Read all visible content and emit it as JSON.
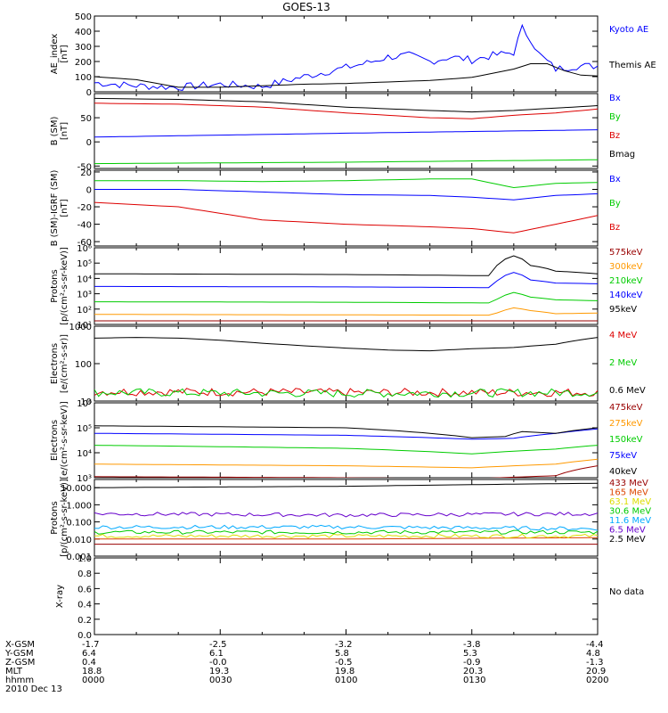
{
  "title": "GOES-13",
  "date_label": "2010 Dec 13",
  "footer": {
    "rows": [
      {
        "label": "X-GSM",
        "values": [
          "-1.7",
          "-2.5",
          "-3.2",
          "-3.8",
          "-4.4"
        ]
      },
      {
        "label": "Y-GSM",
        "values": [
          "6.4",
          "6.1",
          "5.8",
          "5.3",
          "4.8"
        ]
      },
      {
        "label": "Z-GSM",
        "values": [
          "0.4",
          "-0.0",
          "-0.5",
          "-0.9",
          "-1.3"
        ]
      },
      {
        "label": "MLT",
        "values": [
          "18.8",
          "19.3",
          "19.8",
          "20.3",
          "20.9"
        ]
      },
      {
        "label": "hhmm",
        "values": [
          "0000",
          "0030",
          "0100",
          "0130",
          "0200"
        ]
      }
    ]
  },
  "chart_data": [
    {
      "type": "line",
      "ylabel": "AE_index\n[nT]",
      "yscale": "linear",
      "ylim": [
        0,
        500
      ],
      "yticks": [
        {
          "v": 0,
          "label": "0"
        },
        {
          "v": 100,
          "label": "100"
        },
        {
          "v": 200,
          "label": "200"
        },
        {
          "v": 300,
          "label": "300"
        },
        {
          "v": 400,
          "label": "400"
        },
        {
          "v": 500,
          "label": "500"
        }
      ],
      "series": [
        {
          "name": "Kyoto AE",
          "color": "#0000ff",
          "kind": "noisy",
          "x": [
            0,
            10,
            20,
            30,
            40,
            50,
            60,
            65,
            70,
            75,
            80,
            85,
            90,
            95,
            100,
            102,
            104,
            106,
            108,
            110,
            115,
            120
          ],
          "y": [
            60,
            40,
            30,
            50,
            35,
            100,
            160,
            190,
            230,
            240,
            200,
            230,
            210,
            240,
            260,
            420,
            350,
            250,
            200,
            150,
            170,
            170
          ]
        },
        {
          "name": "Themis AE",
          "color": "#000000",
          "kind": "smooth",
          "x": [
            0,
            10,
            20,
            30,
            40,
            50,
            60,
            70,
            80,
            90,
            100,
            104,
            108,
            112,
            116,
            120
          ],
          "y": [
            100,
            80,
            30,
            30,
            40,
            50,
            55,
            65,
            75,
            95,
            150,
            185,
            185,
            140,
            110,
            105
          ]
        }
      ]
    },
    {
      "type": "line",
      "ylabel": "B (SM)\n[nT]",
      "yscale": "linear",
      "ylim": [
        -55,
        100
      ],
      "yticks": [
        {
          "v": -50,
          "label": "-50"
        },
        {
          "v": 0,
          "label": "0"
        },
        {
          "v": 50,
          "label": "50"
        },
        {
          "v": 100,
          "label": ""
        }
      ],
      "series": [
        {
          "name": "Bx",
          "color": "#0000ff",
          "kind": "smooth",
          "x": [
            0,
            60,
            120
          ],
          "y": [
            10,
            18,
            25
          ]
        },
        {
          "name": "By",
          "color": "#00cc00",
          "kind": "smooth",
          "x": [
            0,
            60,
            120
          ],
          "y": [
            -45,
            -42,
            -37
          ]
        },
        {
          "name": "Bz",
          "color": "#dd0000",
          "kind": "smooth",
          "x": [
            0,
            20,
            40,
            60,
            80,
            90,
            100,
            110,
            120
          ],
          "y": [
            80,
            78,
            72,
            60,
            50,
            48,
            55,
            60,
            68
          ]
        },
        {
          "name": "Bmag",
          "color": "#000000",
          "kind": "smooth",
          "x": [
            0,
            20,
            40,
            60,
            80,
            90,
            100,
            110,
            120
          ],
          "y": [
            90,
            88,
            83,
            72,
            65,
            62,
            65,
            70,
            75
          ]
        }
      ]
    },
    {
      "type": "line",
      "ylabel": "B (SM)-IGRF (SM)\n[nT]",
      "yscale": "linear",
      "ylim": [
        -65,
        22
      ],
      "yticks": [
        {
          "v": -60,
          "label": "-60"
        },
        {
          "v": -40,
          "label": "-40"
        },
        {
          "v": -20,
          "label": "-20"
        },
        {
          "v": 0,
          "label": "0"
        },
        {
          "v": 20,
          "label": "20"
        }
      ],
      "series": [
        {
          "name": "Bx",
          "color": "#0000ff",
          "kind": "smooth",
          "x": [
            0,
            20,
            40,
            60,
            80,
            90,
            100,
            110,
            120
          ],
          "y": [
            0,
            0,
            -3,
            -6,
            -7,
            -9,
            -12,
            -7,
            -5
          ]
        },
        {
          "name": "By",
          "color": "#00cc00",
          "kind": "smooth",
          "x": [
            0,
            20,
            40,
            60,
            80,
            90,
            100,
            110,
            120
          ],
          "y": [
            10,
            10,
            9,
            10,
            12,
            12,
            2,
            7,
            8
          ]
        },
        {
          "name": "Bz",
          "color": "#dd0000",
          "kind": "smooth",
          "x": [
            0,
            20,
            40,
            60,
            80,
            90,
            100,
            110,
            120
          ],
          "y": [
            -15,
            -20,
            -35,
            -40,
            -43,
            -45,
            -50,
            -40,
            -30
          ]
        }
      ]
    },
    {
      "type": "line",
      "ylabel": "Protons\n[p/(cm²-s-sr-keV)]",
      "yscale": "log",
      "ylim": [
        10,
        1000000
      ],
      "yticks": [
        {
          "v": 10,
          "label": "10¹"
        },
        {
          "v": 100,
          "label": "10²"
        },
        {
          "v": 1000,
          "label": "10³"
        },
        {
          "v": 10000,
          "label": "10⁴"
        },
        {
          "v": 100000,
          "label": "10⁵"
        },
        {
          "v": 1000000,
          "label": "10⁶"
        }
      ],
      "series": [
        {
          "name": "575keV",
          "color": "#990000",
          "kind": "smooth",
          "x": [
            0,
            60,
            120
          ],
          "y": [
            17,
            17,
            17
          ]
        },
        {
          "name": "300keV",
          "color": "#ff9900",
          "kind": "smooth",
          "x": [
            0,
            60,
            95,
            100,
            104,
            110,
            120
          ],
          "y": [
            45,
            42,
            40,
            120,
            80,
            50,
            55
          ]
        },
        {
          "name": "210keV",
          "color": "#00cc00",
          "kind": "smooth",
          "x": [
            0,
            60,
            95,
            100,
            104,
            110,
            120
          ],
          "y": [
            300,
            280,
            250,
            1200,
            600,
            400,
            350
          ]
        },
        {
          "name": "140keV",
          "color": "#0000ff",
          "kind": "smooth",
          "x": [
            0,
            60,
            95,
            100,
            104,
            110,
            120
          ],
          "y": [
            3000,
            2800,
            2500,
            25000,
            8000,
            5000,
            4500
          ]
        },
        {
          "name": "95keV",
          "color": "#000000",
          "kind": "smooth",
          "x": [
            0,
            60,
            95,
            100,
            104,
            110,
            120
          ],
          "y": [
            20000,
            18000,
            15000,
            300000,
            70000,
            30000,
            20000
          ]
        }
      ]
    },
    {
      "type": "line",
      "ylabel": "Electrons\n[e/(cm²-s-sr)]",
      "yscale": "log",
      "ylim": [
        10,
        1000
      ],
      "yticks": [
        {
          "v": 10,
          "label": "10"
        },
        {
          "v": 100,
          "label": "100"
        },
        {
          "v": 1000,
          "label": "1000"
        }
      ],
      "series": [
        {
          "name": "4 MeV",
          "color": "#dd0000",
          "kind": "noisy",
          "x": [
            0,
            60,
            120
          ],
          "y": [
            18,
            17,
            17
          ]
        },
        {
          "name": "2 MeV",
          "color": "#00cc00",
          "kind": "noisy",
          "x": [
            0,
            60,
            120
          ],
          "y": [
            17,
            16,
            17
          ]
        },
        {
          "name": "0.6 MeV",
          "color": "#000000",
          "kind": "smooth",
          "x": [
            0,
            10,
            20,
            30,
            40,
            50,
            60,
            70,
            80,
            90,
            100,
            110,
            120
          ],
          "y": [
            480,
            500,
            480,
            420,
            350,
            300,
            260,
            230,
            220,
            250,
            270,
            330,
            500
          ]
        }
      ]
    },
    {
      "type": "line",
      "ylabel": "Electrons\n[e/(cm²-s-sr-keV)]",
      "yscale": "log",
      "ylim": [
        1000,
        1000000
      ],
      "yticks": [
        {
          "v": 1000,
          "label": "10³"
        },
        {
          "v": 10000,
          "label": "10⁴"
        },
        {
          "v": 100000,
          "label": "10⁵"
        },
        {
          "v": 1000000,
          "label": "10⁶"
        }
      ],
      "series": [
        {
          "name": "475keV",
          "color": "#990000",
          "kind": "smooth",
          "x": [
            0,
            60,
            90,
            110,
            120
          ],
          "y": [
            1100,
            1000,
            900,
            1200,
            3000
          ]
        },
        {
          "name": "275keV",
          "color": "#ff9900",
          "kind": "smooth",
          "x": [
            0,
            60,
            90,
            110,
            120
          ],
          "y": [
            3500,
            3000,
            2500,
            3500,
            5500
          ]
        },
        {
          "name": "150keV",
          "color": "#00cc00",
          "kind": "smooth",
          "x": [
            0,
            60,
            90,
            110,
            120
          ],
          "y": [
            20000,
            15000,
            9000,
            14000,
            20000
          ]
        },
        {
          "name": "75keV",
          "color": "#0000ff",
          "kind": "smooth",
          "x": [
            0,
            60,
            90,
            100,
            110,
            120
          ],
          "y": [
            60000,
            50000,
            35000,
            38000,
            60000,
            90000
          ]
        },
        {
          "name": "40keV",
          "color": "#000000",
          "kind": "smooth",
          "x": [
            0,
            60,
            90,
            98,
            102,
            110,
            120
          ],
          "y": [
            120000,
            100000,
            40000,
            45000,
            70000,
            60000,
            100000
          ]
        }
      ]
    },
    {
      "type": "line",
      "ylabel": "Protons\n[p/(cm²-s-sr-keV)]",
      "yscale": "log",
      "ylim": [
        0.001,
        30
      ],
      "yticks": [
        {
          "v": 0.001,
          "label": "0.001"
        },
        {
          "v": 0.01,
          "label": "0.010"
        },
        {
          "v": 0.1,
          "label": "0.100"
        },
        {
          "v": 1,
          "label": "1.000"
        },
        {
          "v": 10,
          "label": "10.000"
        }
      ],
      "series": [
        {
          "name": "433 MeV",
          "color": "#990000",
          "kind": "smooth",
          "x": [
            0,
            60,
            120
          ],
          "y": [
            0.005,
            0.005,
            0.005
          ]
        },
        {
          "name": "165 MeV",
          "color": "#dd4400",
          "kind": "smooth",
          "x": [
            0,
            60,
            120
          ],
          "y": [
            0.01,
            0.01,
            0.012
          ]
        },
        {
          "name": "63.1 MeV",
          "color": "#dddd00",
          "kind": "noisy",
          "x": [
            0,
            60,
            120
          ],
          "y": [
            0.015,
            0.015,
            0.015
          ]
        },
        {
          "name": "30.6 MeV",
          "color": "#00cc00",
          "kind": "noisy",
          "x": [
            0,
            60,
            120
          ],
          "y": [
            0.025,
            0.025,
            0.025
          ]
        },
        {
          "name": "11.6 MeV",
          "color": "#00aaff",
          "kind": "noisy",
          "x": [
            0,
            60,
            120
          ],
          "y": [
            0.05,
            0.05,
            0.04
          ]
        },
        {
          "name": "6.5 MeV",
          "color": "#6600cc",
          "kind": "noisy",
          "x": [
            0,
            60,
            120
          ],
          "y": [
            0.3,
            0.25,
            0.3
          ]
        },
        {
          "name": "2.5 MeV",
          "color": "#000000",
          "kind": "smooth",
          "x": [
            0,
            60,
            120
          ],
          "y": [
            10,
            12,
            18
          ]
        }
      ]
    },
    {
      "type": "line",
      "ylabel": "X-ray",
      "yscale": "linear",
      "ylim": [
        0,
        1
      ],
      "yticks": [
        {
          "v": 0,
          "label": "0.0"
        },
        {
          "v": 0.2,
          "label": "0.2"
        },
        {
          "v": 0.4,
          "label": "0.4"
        },
        {
          "v": 0.6,
          "label": "0.6"
        },
        {
          "v": 0.8,
          "label": "0.8"
        },
        {
          "v": 1,
          "label": "1.0"
        }
      ],
      "note": "No data",
      "series": []
    }
  ]
}
